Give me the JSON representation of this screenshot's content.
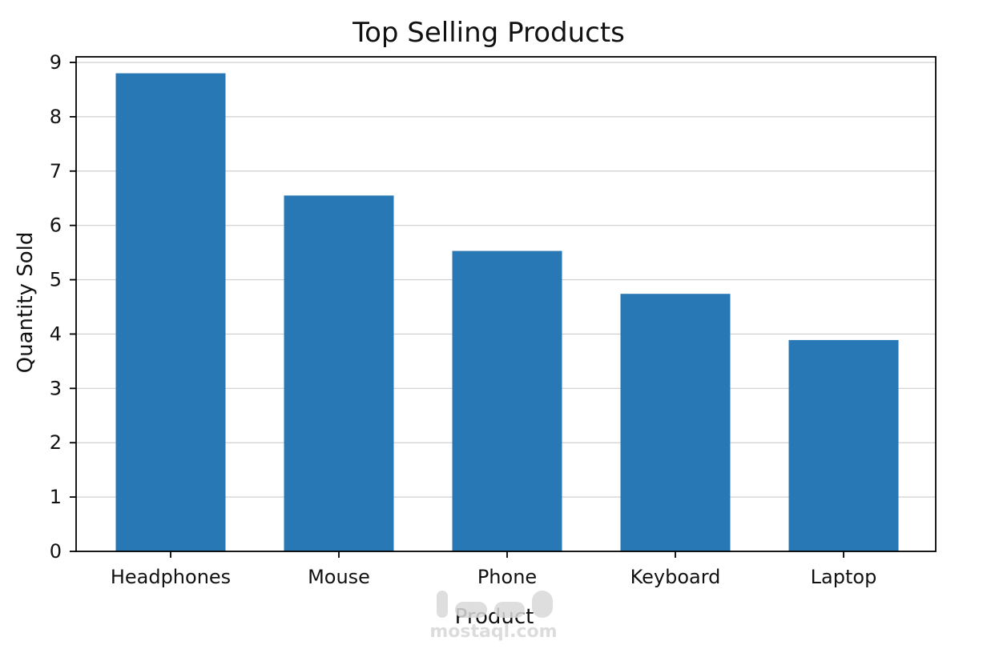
{
  "chart_data": {
    "type": "bar",
    "title": "Top Selling Products",
    "xlabel": "Product",
    "ylabel": "Quantity Sold",
    "categories": [
      "Headphones",
      "Mouse",
      "Phone",
      "Keyboard",
      "Laptop"
    ],
    "values": [
      8.8,
      6.55,
      5.53,
      4.74,
      3.89
    ],
    "ylim": [
      0,
      9
    ],
    "yticks": [
      0,
      1,
      2,
      3,
      4,
      5,
      6,
      7,
      8,
      9
    ],
    "grid": true,
    "bar_color": "#2878b5"
  },
  "watermark": {
    "text": "mostaql.com"
  }
}
